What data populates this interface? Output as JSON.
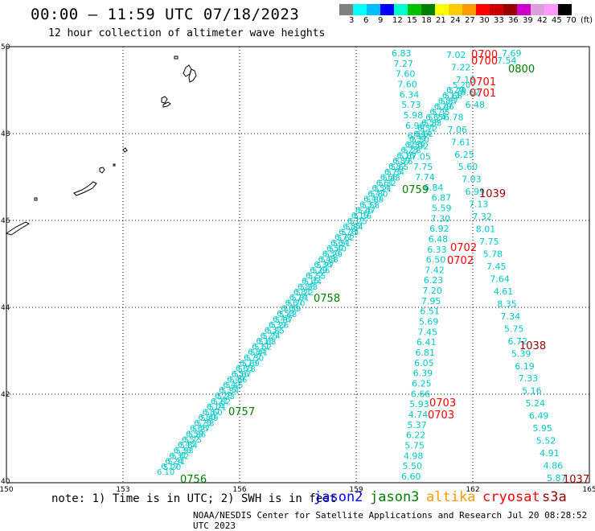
{
  "title": "00:00 – 11:59 UTC 07/18/2023",
  "subtitle": "12 hour collection of altimeter wave heights",
  "legend": {
    "colors": [
      "#808080",
      "#00ffff",
      "#00bfff",
      "#0000ff",
      "#00ffcc",
      "#00c000",
      "#008000",
      "#ffff00",
      "#ffcc00",
      "#ff9900",
      "#ff0000",
      "#cc0000",
      "#990000",
      "#cc00cc",
      "#dda0dd",
      "#ff99ff",
      "#000000"
    ],
    "values": [
      "3",
      "6",
      "9",
      "12",
      "15",
      "18",
      "21",
      "24",
      "27",
      "30",
      "33",
      "36",
      "39",
      "42",
      "45",
      "70",
      "(ft)"
    ]
  },
  "map": {
    "lon_ticks": [
      "150",
      "153",
      "156",
      "159",
      "162",
      "165"
    ],
    "lat_ticks": [
      "50",
      "48",
      "46",
      "44",
      "42",
      "40"
    ],
    "lon_range": [
      150,
      165
    ],
    "lat_range": [
      40,
      50
    ]
  },
  "times": {
    "jason3": [
      "0756",
      "0757",
      "0758",
      "0759",
      "0800"
    ],
    "cryosat": [
      "0700",
      "0700",
      "0701",
      "0701",
      "0702",
      "0702",
      "0703",
      "0703"
    ],
    "s3a": [
      "1037",
      "1038",
      "1039"
    ]
  },
  "tracks": {
    "B": [
      "6.83",
      "7.27",
      "7.60",
      "7.60",
      "6.34",
      "5.73",
      "5.98",
      "6.96",
      "6.31",
      "7.02",
      "7.05",
      "7.75",
      "7.74",
      "6.84",
      "6.87",
      "5.59",
      "7.30",
      "6.92",
      "6.48",
      "6.33",
      "6.50",
      "7.42",
      "6.23",
      "7.20",
      "7.95",
      "6.51",
      "5.69",
      "7.45",
      "6.41",
      "6.81",
      "6.05",
      "6.39",
      "6.25",
      "6.66",
      "5.93",
      "4.74",
      "5.37",
      "6.22",
      "5.75",
      "4.98",
      "5.50",
      "6.60"
    ],
    "C": [
      "7.02",
      "7.22",
      "7.10",
      "6.62",
      "6.48",
      "6.78",
      "7.06",
      "7.61",
      "6.25",
      "5.60",
      "7.03",
      "6.99",
      "7.13",
      "7.32",
      "8.01",
      "7.75",
      "5.78",
      "7.45",
      "7.64",
      "4.61",
      "8.35",
      "7.34",
      "5.75",
      "6.72",
      "5.39",
      "6.19",
      "7.33",
      "5.16",
      "5.24",
      "6.49",
      "5.95",
      "5.52",
      "4.91",
      "4.86",
      "5.87"
    ],
    "D": [
      "7.69",
      "7.54"
    ]
  },
  "note": "note: 1) Time is in UTC; 2) SWH is in feet",
  "satellites": {
    "jason2": {
      "label": "jason2",
      "color": "#0000ff"
    },
    "jason3": {
      "label": "jason3",
      "color": "#008000"
    },
    "altika": {
      "label": "altika",
      "color": "#ff9900"
    },
    "cryosat": {
      "label": "cryosat",
      "color": "#ff0000"
    },
    "s3a": {
      "label": "s3a",
      "color": "#990000"
    }
  },
  "footer": "NOAA/NESDIS Center for Satellite Applications and Research   Jul 20 08:28:52 UTC 2023"
}
